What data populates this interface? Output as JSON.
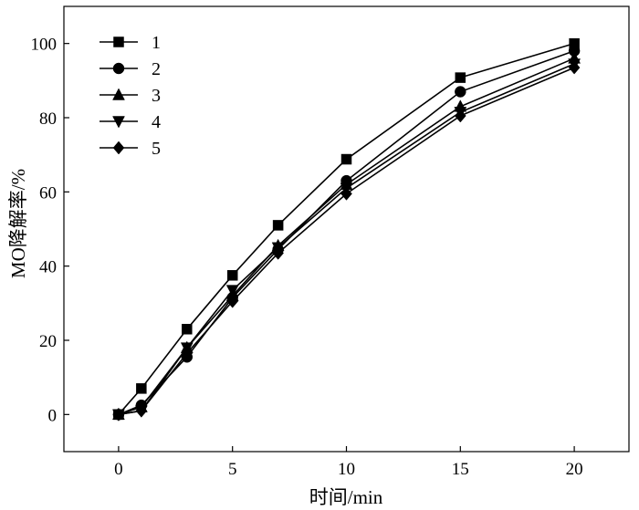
{
  "chart_data": {
    "type": "line",
    "title": "",
    "xlabel": "时间/min",
    "ylabel": "MO降解率/%",
    "xlim": [
      -2.4,
      22.4
    ],
    "ylim": [
      -10,
      110
    ],
    "xticks": [
      0,
      5,
      10,
      15,
      20
    ],
    "yticks": [
      0,
      20,
      40,
      60,
      80,
      100
    ],
    "grid": false,
    "legend": "top-left",
    "x": [
      0,
      1,
      3,
      5,
      7,
      10,
      15,
      20
    ],
    "series": [
      {
        "name": "1",
        "marker": "square",
        "values": [
          0,
          7.0,
          23.0,
          37.5,
          51.0,
          68.8,
          90.8,
          100.0
        ]
      },
      {
        "name": "2",
        "marker": "circle",
        "values": [
          0,
          2.5,
          15.5,
          31.5,
          44.5,
          63.0,
          87.0,
          98.0
        ]
      },
      {
        "name": "3",
        "marker": "triangle-up",
        "values": [
          0,
          2.0,
          18.0,
          32.0,
          45.5,
          62.0,
          83.0,
          96.0
        ]
      },
      {
        "name": "4",
        "marker": "triangle-down",
        "values": [
          0,
          1.0,
          18.0,
          33.5,
          45.0,
          61.0,
          81.5,
          94.5
        ]
      },
      {
        "name": "5",
        "marker": "diamond",
        "values": [
          0,
          1.0,
          16.5,
          30.5,
          43.5,
          59.5,
          80.5,
          93.5
        ]
      }
    ]
  }
}
